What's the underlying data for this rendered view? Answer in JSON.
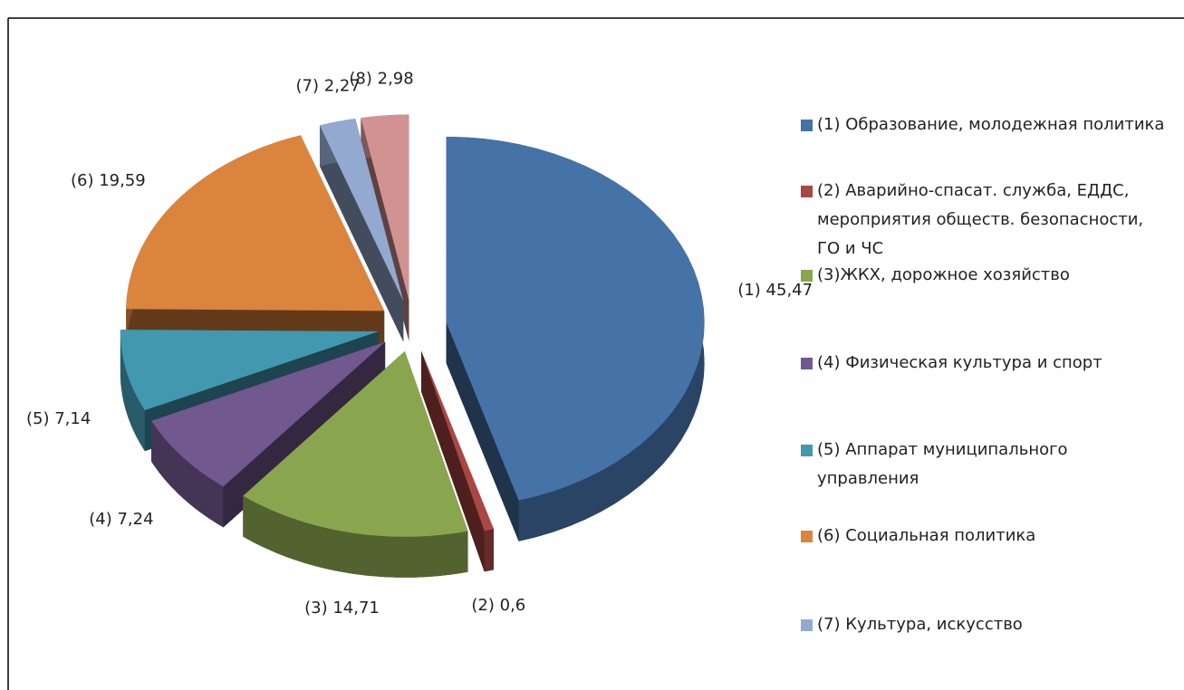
{
  "chart_data": {
    "type": "pie",
    "categories": [
      "(1) Образование, молодежная политика",
      "(2) Аварийно-спасат. служба, ЕДДС, мероприятия обществ. безопасности, ГО и ЧС",
      "(3)ЖКХ, дорожное хозяйство",
      "(4) Физическая культура и спорт",
      "(5) Аппарат муниципального управления",
      "(6) Социальная политика",
      "(7) Культура, искусство",
      null
    ],
    "values": [
      45.47,
      0.6,
      14.71,
      7.24,
      7.14,
      19.59,
      2.27,
      2.98
    ],
    "value_labels": [
      "(1) 45,47",
      "(2) 0,6",
      "(3) 14,71",
      "(4) 7,24",
      "(5) 7,14",
      "(6) 19,59",
      "(7) 2,27",
      "(8) 2,98"
    ],
    "colors": [
      "#4572a7",
      "#aa4643",
      "#89a54e",
      "#71588f",
      "#4198af",
      "#db843d",
      "#93a9cf",
      "#d19392"
    ]
  }
}
